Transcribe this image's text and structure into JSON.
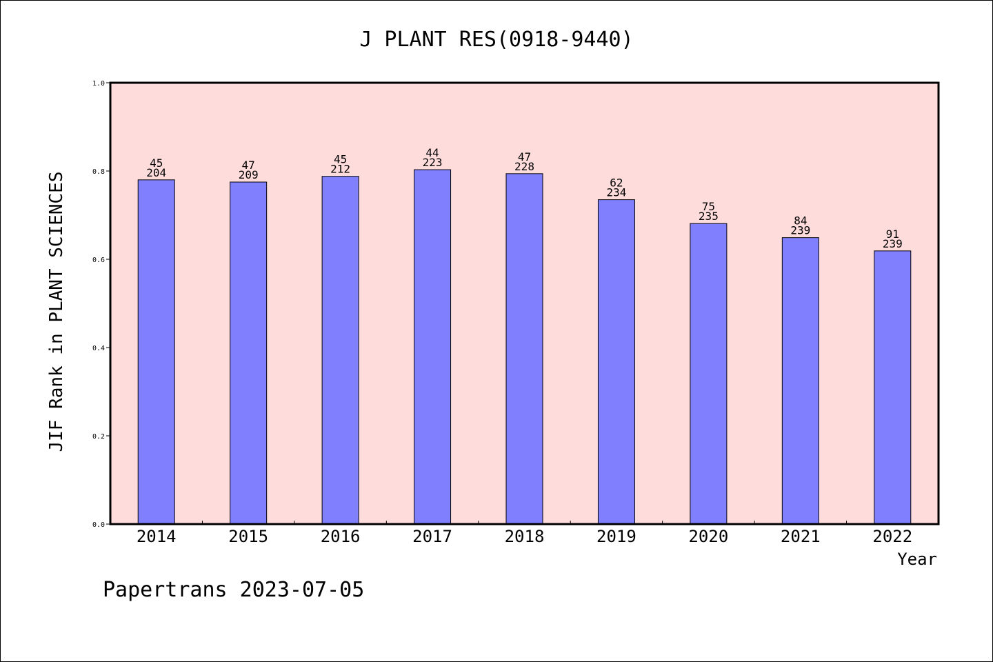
{
  "chart_data": {
    "type": "bar",
    "title": "J PLANT RES(0918-9440)",
    "xlabel": "Year",
    "ylabel": "JIF Rank in PLANT SCIENCES",
    "ylim": [
      0,
      1.0
    ],
    "yticks": [
      "0.0",
      "0.2",
      "0.4",
      "0.6",
      "0.8",
      "1.0"
    ],
    "grid": false,
    "categories": [
      "2014",
      "2015",
      "2016",
      "2017",
      "2018",
      "2019",
      "2020",
      "2021",
      "2022"
    ],
    "values": [
      0.78,
      0.775,
      0.788,
      0.803,
      0.794,
      0.735,
      0.681,
      0.649,
      0.619
    ],
    "ranks": [
      "45",
      "47",
      "45",
      "44",
      "47",
      "62",
      "75",
      "84",
      "91"
    ],
    "totals": [
      "204",
      "209",
      "212",
      "223",
      "228",
      "234",
      "235",
      "239",
      "239"
    ],
    "colors": {
      "bar": "#8080ff",
      "plot_background": "#ffdcdc"
    }
  },
  "footer": "Papertrans 2023-07-05"
}
